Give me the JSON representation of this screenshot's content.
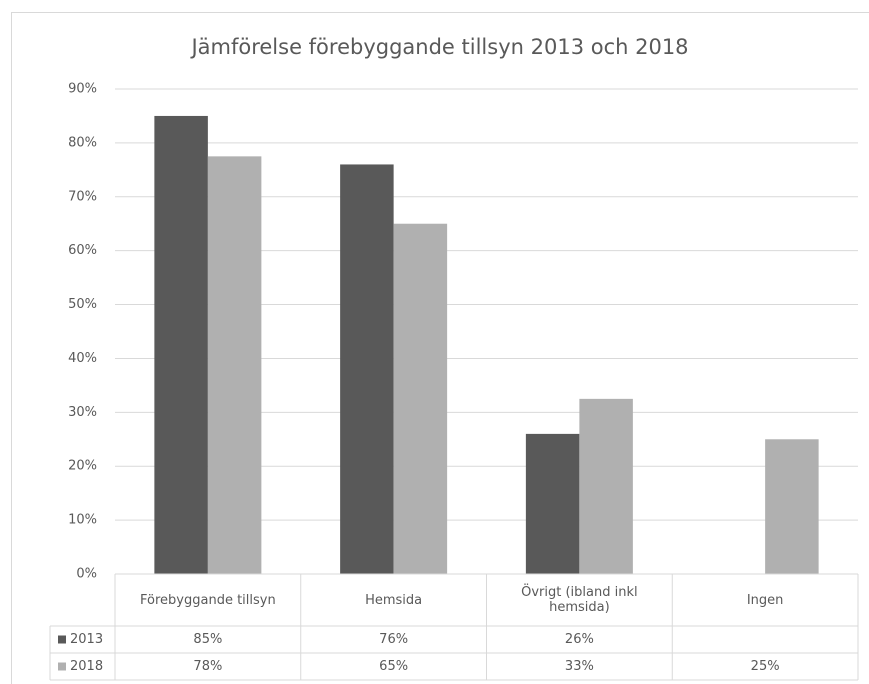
{
  "chart_data": {
    "type": "bar",
    "title": "Jämförelse förebyggande tillsyn 2013 och 2018",
    "categories": [
      "Förebyggande tillsyn",
      "Hemsida",
      "Övrigt (ibland inkl hemsida)",
      "Ingen"
    ],
    "series": [
      {
        "name": "2013",
        "color": "#595959",
        "values": [
          85,
          76,
          26,
          null
        ],
        "value_labels": [
          "85%",
          "76%",
          "26%",
          null
        ]
      },
      {
        "name": "2018",
        "color": "#b0b0b0",
        "values": [
          77.5,
          65,
          32.5,
          25
        ],
        "value_labels": [
          "78%",
          "65%",
          "33%",
          "25%"
        ]
      }
    ],
    "ylim": [
      0,
      90
    ],
    "yticks": [
      {
        "value": 0,
        "label": "0%"
      },
      {
        "value": 10,
        "label": "10%"
      },
      {
        "value": 20,
        "label": "20%"
      },
      {
        "value": 30,
        "label": "30%"
      },
      {
        "value": 40,
        "label": "40%"
      },
      {
        "value": 50,
        "label": "50%"
      },
      {
        "value": 60,
        "label": "60%"
      },
      {
        "value": 70,
        "label": "70%"
      },
      {
        "value": 80,
        "label": "80%"
      },
      {
        "value": 90,
        "label": "90%"
      }
    ],
    "grid": true
  }
}
